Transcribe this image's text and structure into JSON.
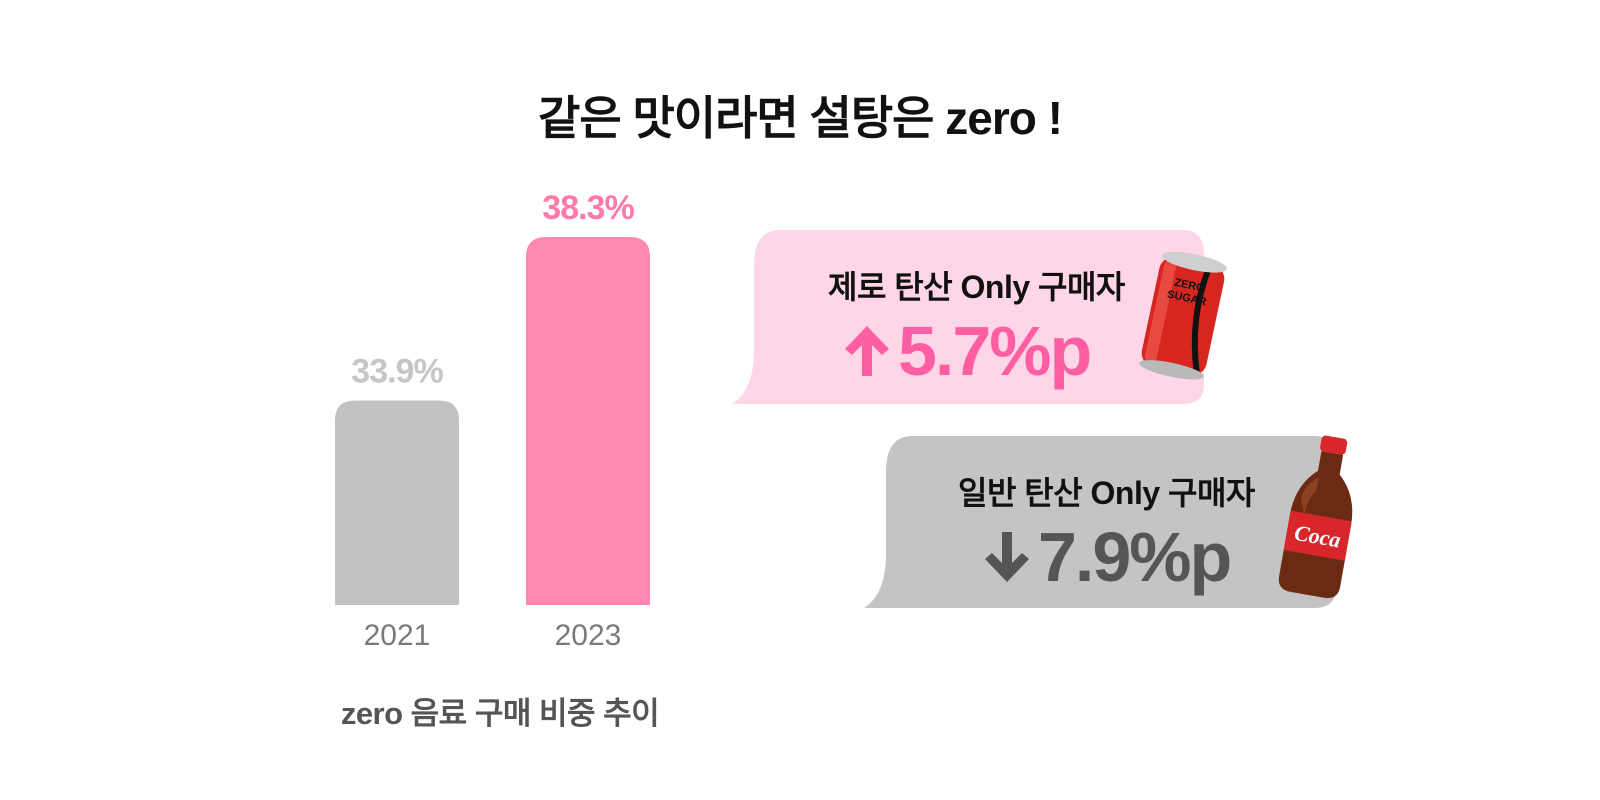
{
  "title": "같은 맛이라면 설탕은 zero !",
  "chart_data": {
    "type": "bar",
    "categories": [
      "2021",
      "2023"
    ],
    "values": [
      33.9,
      38.3
    ],
    "data_labels": [
      "33.9%",
      "38.3%"
    ],
    "colors": [
      "#c2c2c2",
      "#ff88b2"
    ],
    "label_colors": [
      "#c6c6c6",
      "#ff7aa8"
    ],
    "caption": "zero 음료 구매 비중 추이"
  },
  "callouts": [
    {
      "label": "제로 탄산 Only 구매자",
      "value": "5.7%p",
      "direction": "up",
      "arrow_icon": "arrow-up-icon",
      "bubble_color": "#ffd6e8",
      "value_color": "#ff5fa2",
      "illustration": "zero-sugar-can",
      "can_text": "ZERO SUGAR"
    },
    {
      "label": "일반 탄산 Only 구매자",
      "value": "7.9%p",
      "direction": "down",
      "arrow_icon": "arrow-down-icon",
      "bubble_color": "#c4c4c4",
      "value_color": "#555555",
      "illustration": "cola-bottle",
      "bottle_text": "Coca"
    }
  ]
}
